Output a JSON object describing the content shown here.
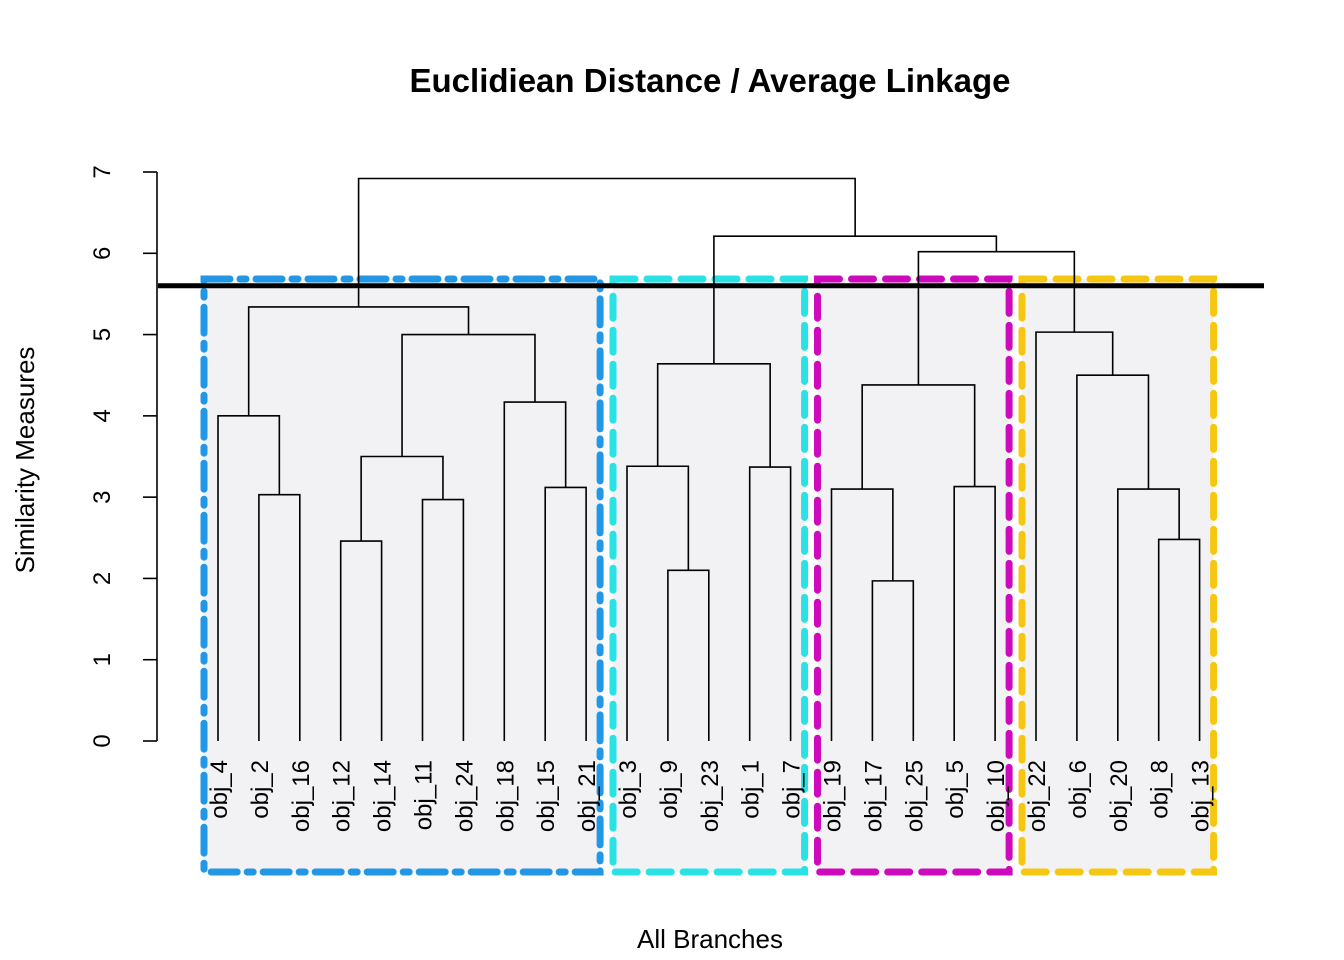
{
  "chart_data": {
    "type": "dendrogram",
    "title": "Euclidiean Distance / Average Linkage",
    "xlabel": "All Branches",
    "ylabel": "Similarity Measures",
    "ylim": [
      0,
      7
    ],
    "yticks": [
      "0",
      "1",
      "2",
      "3",
      "4",
      "5",
      "6",
      "7"
    ],
    "cut_height": 5.6,
    "leaves": [
      "obj_4",
      "obj_2",
      "obj_16",
      "obj_12",
      "obj_14",
      "obj_11",
      "obj_24",
      "obj_18",
      "obj_15",
      "obj_21",
      "obj_3",
      "obj_9",
      "obj_23",
      "obj_1",
      "obj_7",
      "obj_19",
      "obj_17",
      "obj_25",
      "obj_5",
      "obj_10",
      "obj_22",
      "obj_6",
      "obj_20",
      "obj_8",
      "obj_13"
    ],
    "merges": [
      {
        "a": "obj_2",
        "b": "obj_16",
        "height": 3.03,
        "id": "c1"
      },
      {
        "a": "obj_4",
        "b": "c1",
        "height": 4.0,
        "id": "c2"
      },
      {
        "a": "obj_12",
        "b": "obj_14",
        "height": 2.46,
        "id": "c3"
      },
      {
        "a": "obj_11",
        "b": "obj_24",
        "height": 2.97,
        "id": "c4"
      },
      {
        "a": "c3",
        "b": "c4",
        "height": 3.5,
        "id": "c5"
      },
      {
        "a": "obj_15",
        "b": "obj_21",
        "height": 3.12,
        "id": "c6"
      },
      {
        "a": "obj_18",
        "b": "c6",
        "height": 4.17,
        "id": "c7"
      },
      {
        "a": "c5",
        "b": "c7",
        "height": 5.0,
        "id": "c8"
      },
      {
        "a": "c2",
        "b": "c8",
        "height": 5.34,
        "id": "c9"
      },
      {
        "a": "obj_9",
        "b": "obj_23",
        "height": 2.1,
        "id": "c10"
      },
      {
        "a": "obj_3",
        "b": "c10",
        "height": 3.38,
        "id": "c11"
      },
      {
        "a": "obj_1",
        "b": "obj_7",
        "height": 3.37,
        "id": "c12"
      },
      {
        "a": "c11",
        "b": "c12",
        "height": 4.64,
        "id": "c13"
      },
      {
        "a": "obj_17",
        "b": "obj_25",
        "height": 1.97,
        "id": "c14"
      },
      {
        "a": "obj_19",
        "b": "c14",
        "height": 3.1,
        "id": "c15"
      },
      {
        "a": "obj_5",
        "b": "obj_10",
        "height": 3.13,
        "id": "c16"
      },
      {
        "a": "c15",
        "b": "c16",
        "height": 4.38,
        "id": "c17"
      },
      {
        "a": "obj_8",
        "b": "obj_13",
        "height": 2.48,
        "id": "c18"
      },
      {
        "a": "obj_20",
        "b": "c18",
        "height": 3.1,
        "id": "c19"
      },
      {
        "a": "obj_6",
        "b": "c19",
        "height": 4.5,
        "id": "c20"
      },
      {
        "a": "obj_22",
        "b": "c20",
        "height": 5.03,
        "id": "c21"
      },
      {
        "a": "c17",
        "b": "c21",
        "height": 6.02,
        "id": "c22"
      },
      {
        "a": "c13",
        "b": "c22",
        "height": 6.21,
        "id": "c23"
      },
      {
        "a": "c9",
        "b": "c23",
        "height": 6.92,
        "id": "c24"
      }
    ],
    "clusters": [
      {
        "first": 0,
        "last": 9,
        "color": "#2297E6",
        "style": "dash-dot"
      },
      {
        "first": 10,
        "last": 14,
        "color": "#28E2E5",
        "style": "dashed"
      },
      {
        "first": 15,
        "last": 19,
        "color": "#CD0BBC",
        "style": "dashed"
      },
      {
        "first": 20,
        "last": 24,
        "color": "#F5C710",
        "style": "dashed"
      }
    ],
    "colors": {
      "cluster_fill": "#F2F2F4",
      "branch": "#000000",
      "cut_line": "#000000"
    }
  }
}
